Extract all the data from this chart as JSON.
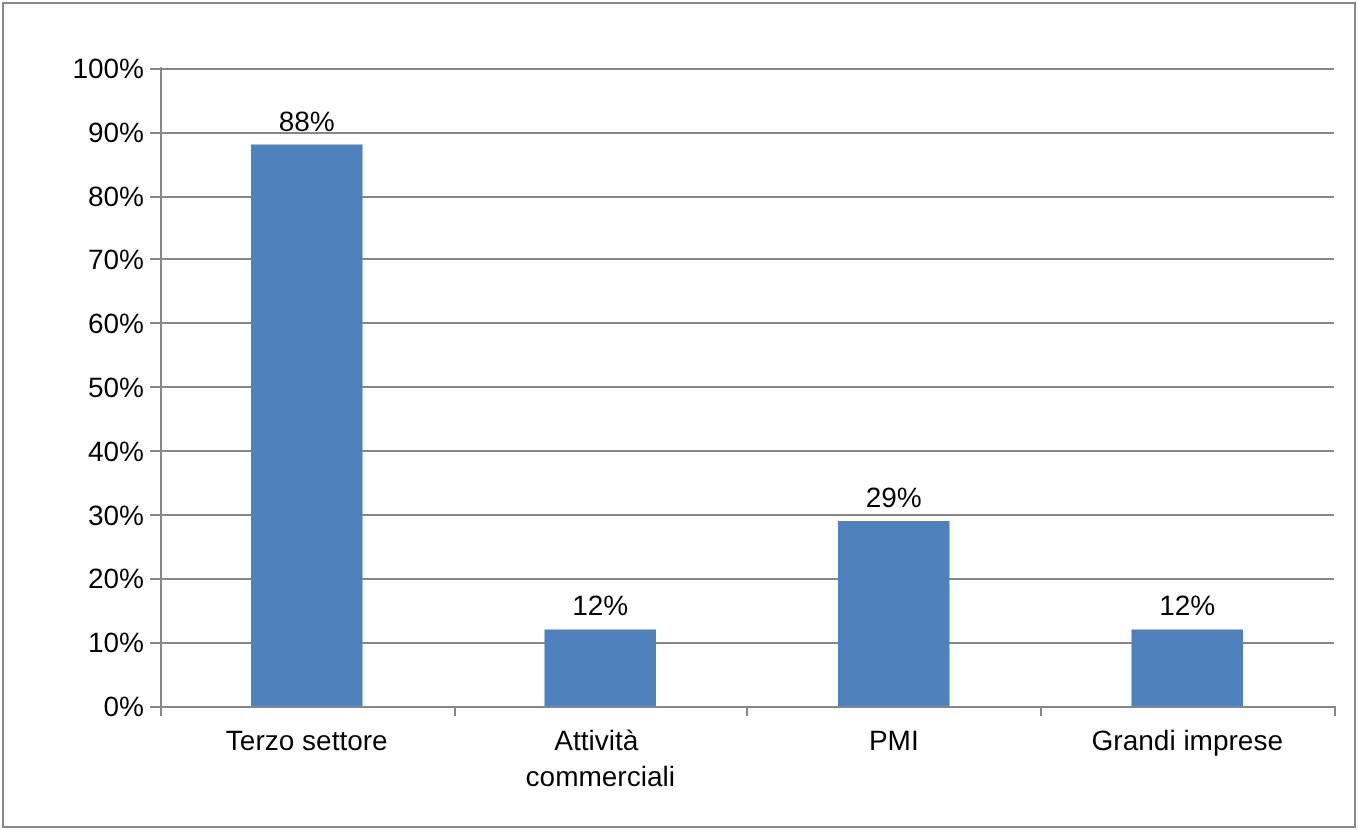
{
  "chart_data": {
    "type": "bar",
    "categories": [
      "Terzo settore",
      "Attività commerciali",
      "PMI",
      "Grandi imprese"
    ],
    "values": [
      88,
      12,
      29,
      12
    ],
    "value_labels": [
      "88%",
      "12%",
      "29%",
      "12%"
    ],
    "color": "#4f81bd",
    "ylim": [
      0,
      100
    ],
    "yticks": [
      {
        "value": 0,
        "label": "0%"
      },
      {
        "value": 10,
        "label": "10%"
      },
      {
        "value": 20,
        "label": "20%"
      },
      {
        "value": 30,
        "label": "30%"
      },
      {
        "value": 40,
        "label": "40%"
      },
      {
        "value": 50,
        "label": "50%"
      },
      {
        "value": 60,
        "label": "60%"
      },
      {
        "value": 70,
        "label": "70%"
      },
      {
        "value": 80,
        "label": "80%"
      },
      {
        "value": 90,
        "label": "90%"
      },
      {
        "value": 100,
        "label": "100%"
      }
    ],
    "grid": "y"
  }
}
